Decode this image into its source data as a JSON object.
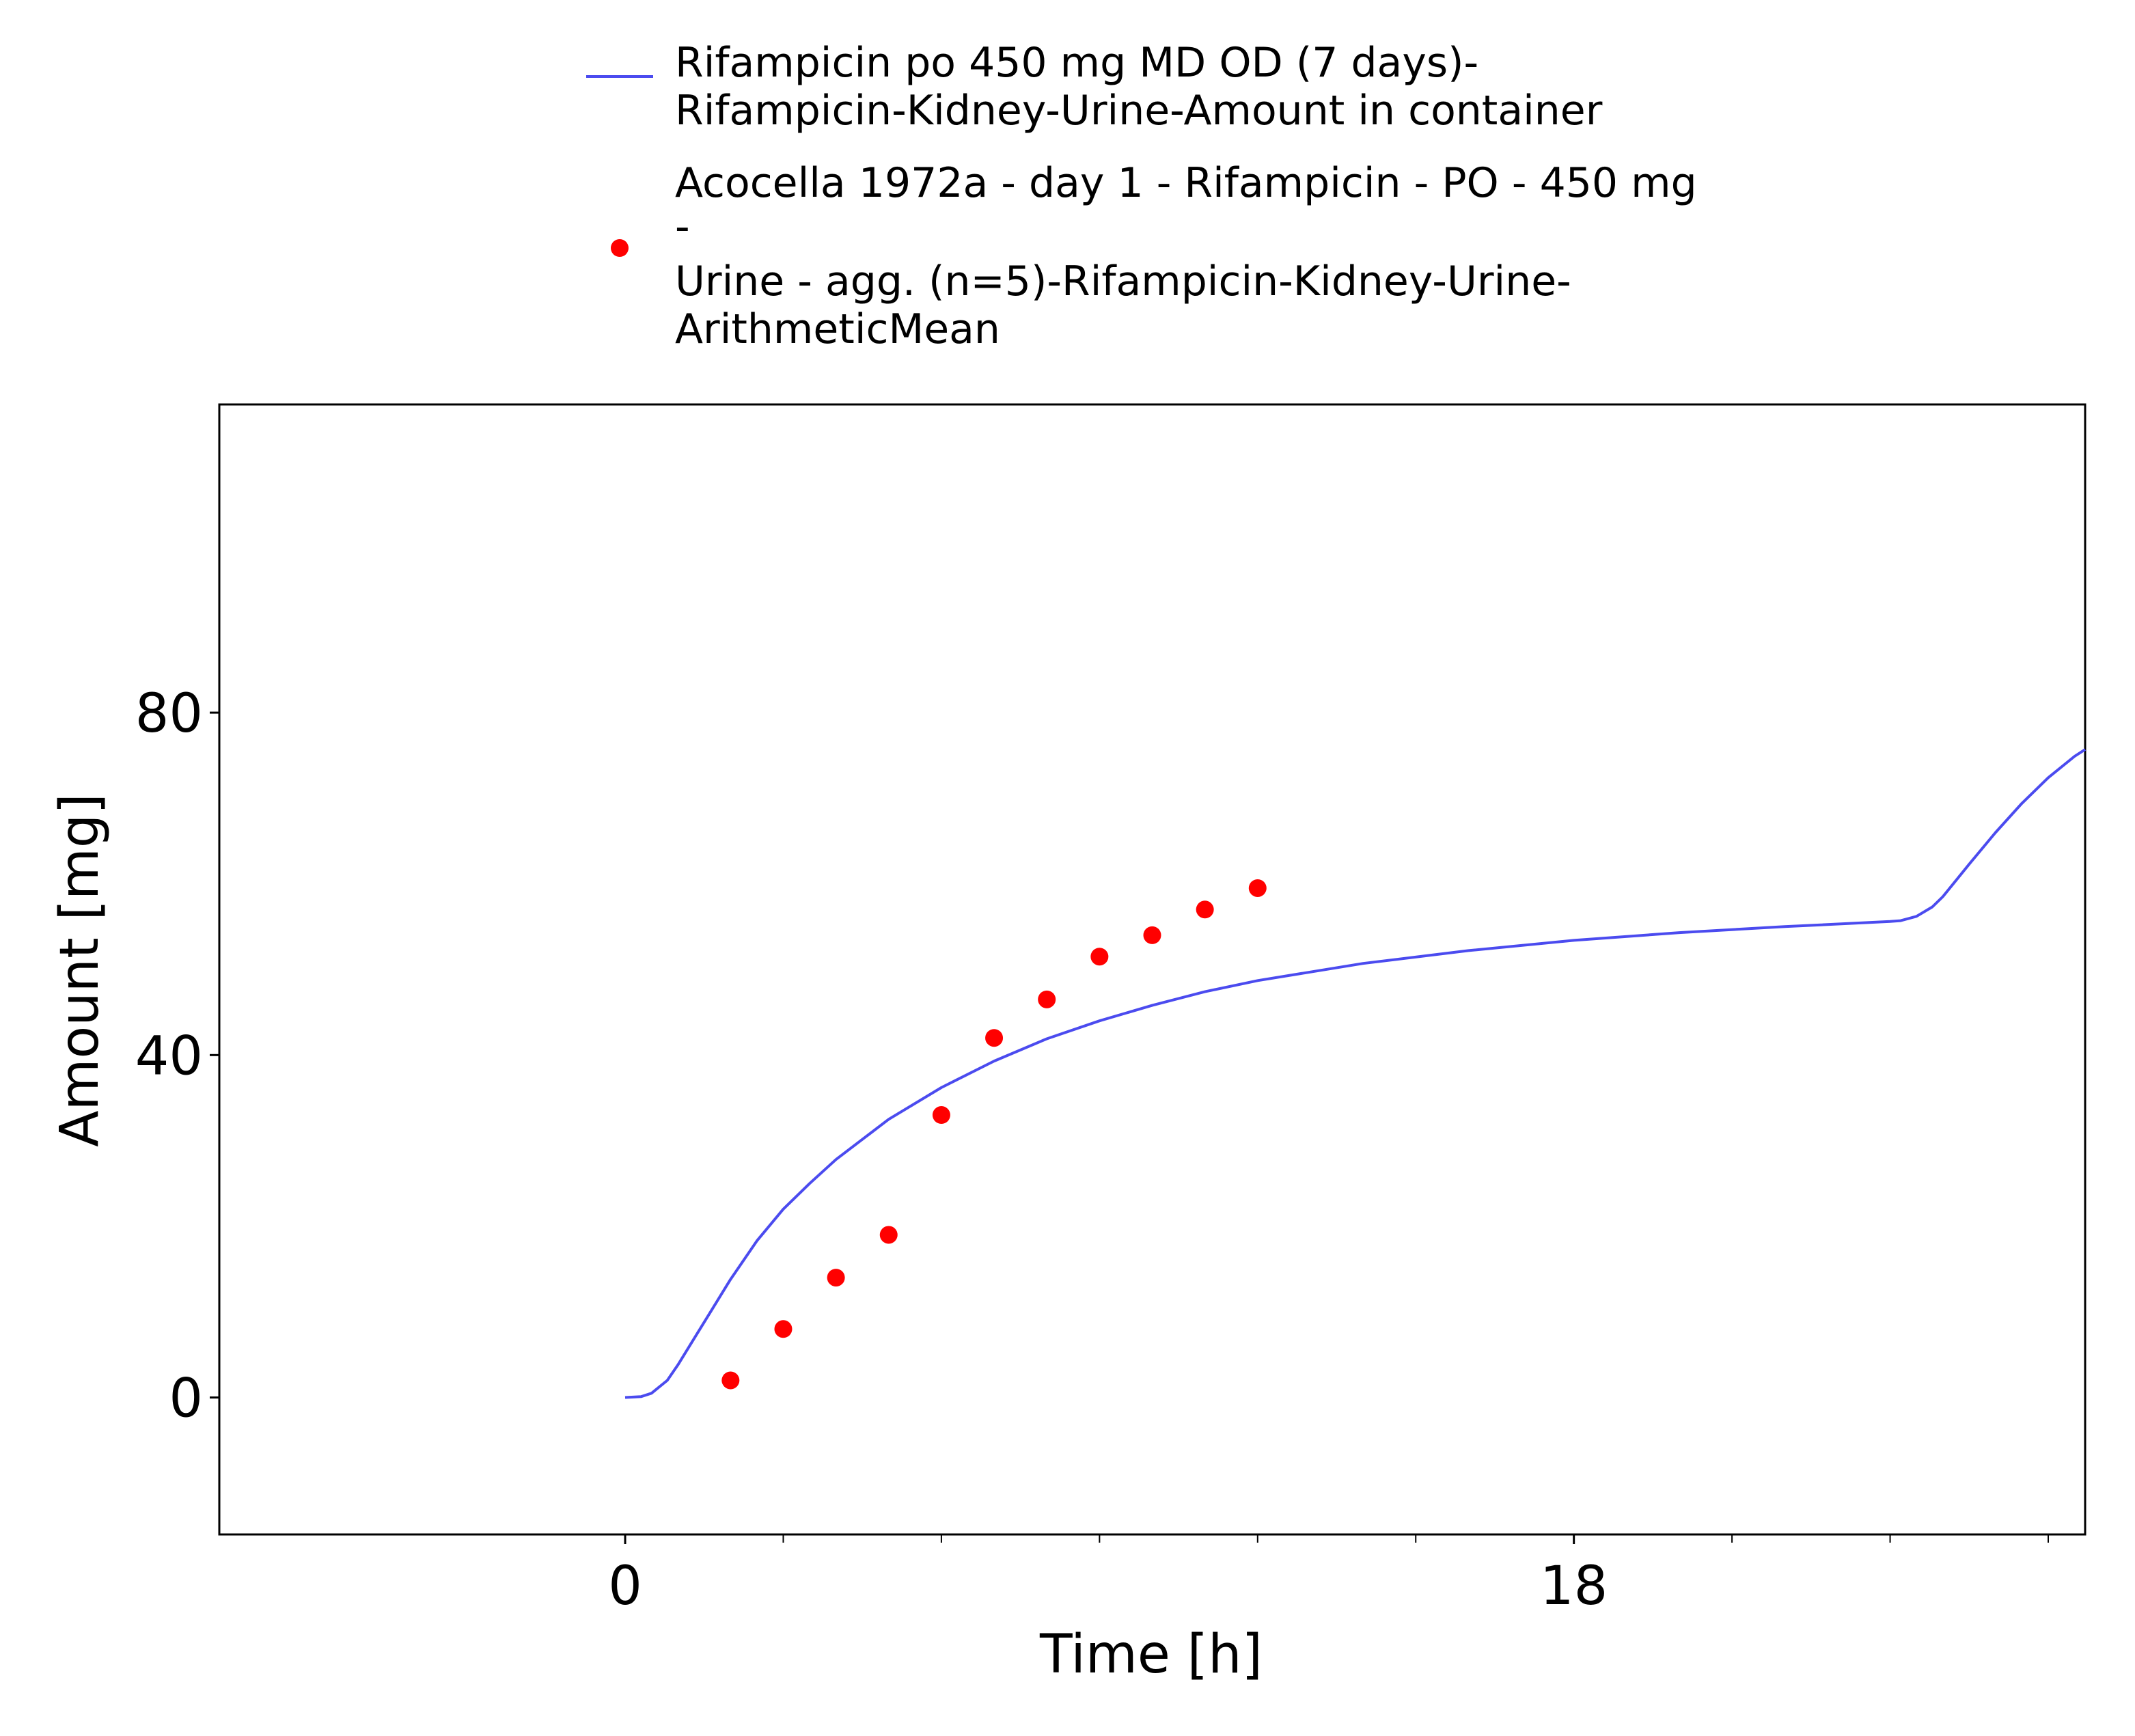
{
  "chart_data": {
    "type": "line",
    "xlabel": "Time [h]",
    "ylabel": "Amount [mg]",
    "xlim": [
      -7.7,
      27.7
    ],
    "ylim": [
      -16,
      116
    ],
    "x_ticks_labeled": [
      0,
      18
    ],
    "x_ticks_minor": [
      3,
      6,
      9,
      12,
      15,
      21,
      24,
      27
    ],
    "y_ticks": [
      0,
      40,
      80
    ],
    "grid": false,
    "legend_position": "top",
    "colors": {
      "line": "#4b4bef",
      "points": "#ff0000"
    },
    "series": [
      {
        "name": "Rifampicin po 450 mg MD OD (7 days)-Rifampicin-Kidney-Urine-Amount in container",
        "name_lines": [
          "Rifampicin po 450 mg MD OD (7 days)-",
          "Rifampicin-Kidney-Urine-Amount in container"
        ],
        "kind": "line",
        "x": [
          0,
          0.3,
          0.5,
          0.8,
          1.0,
          1.5,
          2.0,
          2.5,
          3.0,
          3.5,
          4.0,
          5.0,
          6.0,
          7.0,
          8.0,
          9.0,
          10.0,
          11.0,
          12.0,
          14.0,
          16.0,
          18.0,
          20.0,
          22.0,
          24.0,
          24.2,
          24.5,
          24.8,
          25.0,
          25.5,
          26.0,
          26.5,
          27.0,
          27.5,
          27.7
        ],
        "y": [
          0,
          0.1,
          0.5,
          2.0,
          3.8,
          8.8,
          13.8,
          18.3,
          22.0,
          25.0,
          27.8,
          32.5,
          36.2,
          39.3,
          41.9,
          44.0,
          45.8,
          47.4,
          48.7,
          50.7,
          52.2,
          53.4,
          54.3,
          55.0,
          55.6,
          55.7,
          56.2,
          57.3,
          58.5,
          62.3,
          66.0,
          69.4,
          72.4,
          74.9,
          75.7
        ]
      },
      {
        "name": "Acocella 1972a - day 1 - Rifampicin - PO - 450 mg - Urine - agg. (n=5)-Rifampicin-Kidney-Urine-ArithmeticMean",
        "name_lines": [
          "Acocella 1972a - day 1 - Rifampicin - PO - 450 mg",
          "-",
          "Urine - agg. (n=5)-Rifampicin-Kidney-Urine-",
          "ArithmeticMean"
        ],
        "kind": "scatter",
        "x": [
          2,
          3,
          4,
          5,
          6,
          7,
          8,
          9,
          10,
          11,
          12
        ],
        "y": [
          2.0,
          8.0,
          14.0,
          19.0,
          33.0,
          42.0,
          46.5,
          51.5,
          54.0,
          57.0,
          59.5
        ]
      }
    ]
  }
}
